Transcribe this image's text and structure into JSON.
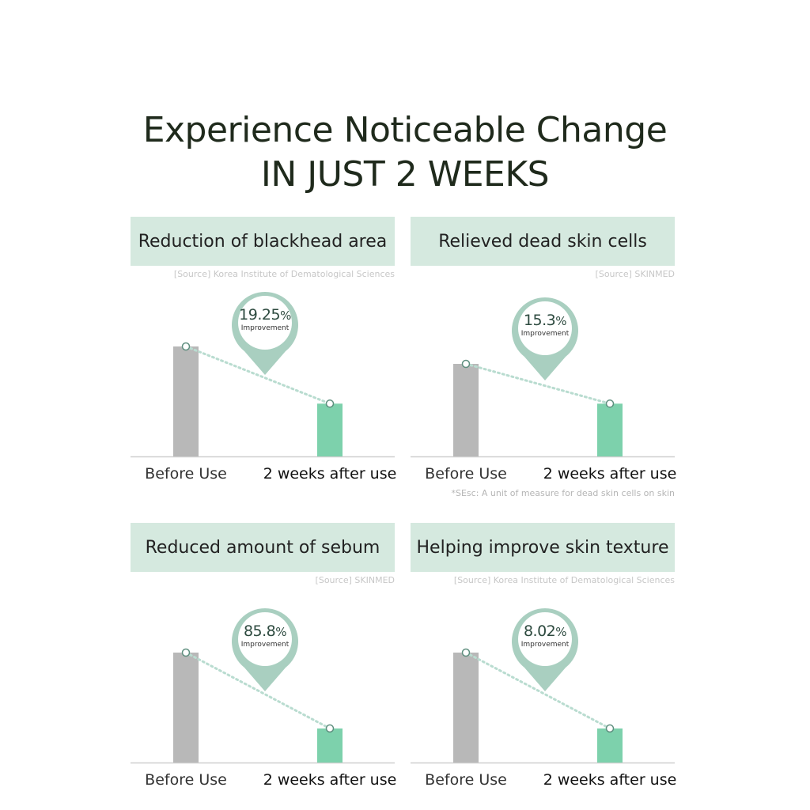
{
  "header": {
    "title_line1": "Experience Noticeable Change",
    "title_line2": "IN JUST 2 WEEKS"
  },
  "colors": {
    "banner_bg": "#d5e9df",
    "before_bar": "#b8b8b8",
    "after_bar": "#7dd1ac",
    "pin": "#a9cfc0",
    "dotted_line": "#b9dcd0"
  },
  "chart_data": [
    {
      "type": "bar",
      "title": "Reduction of blackhead area",
      "source": "[Source] Korea Institute of Dematological Sciences",
      "categories": [
        "Before Use",
        "2 weeks after use"
      ],
      "values": [
        100,
        48
      ],
      "improvement_value": "19.25",
      "improvement_unit": "%",
      "improvement_label": "Improvement",
      "footnote": ""
    },
    {
      "type": "bar",
      "title": "Relieved dead skin cells",
      "source": "[Source] SKINMED",
      "categories": [
        "Before Use",
        "2 weeks after use"
      ],
      "values": [
        100,
        57
      ],
      "improvement_value": "15.3",
      "improvement_unit": "%",
      "improvement_label": "Improvement",
      "footnote": "*SEsc: A unit of measure for dead skin cells on skin"
    },
    {
      "type": "bar",
      "title": "Reduced amount of sebum",
      "source": "[Source] SKINMED",
      "categories": [
        "Before Use",
        "2 weeks after use"
      ],
      "values": [
        100,
        31
      ],
      "improvement_value": "85.8",
      "improvement_unit": "%",
      "improvement_label": "Improvement",
      "footnote": ""
    },
    {
      "type": "bar",
      "title": "Helping improve skin texture",
      "source": "[Source] Korea Institute of Dematological Sciences",
      "categories": [
        "Before Use",
        "2 weeks after use"
      ],
      "values": [
        100,
        31
      ],
      "improvement_value": "8.02",
      "improvement_unit": "%",
      "improvement_label": "Improvement",
      "footnote": ""
    }
  ]
}
